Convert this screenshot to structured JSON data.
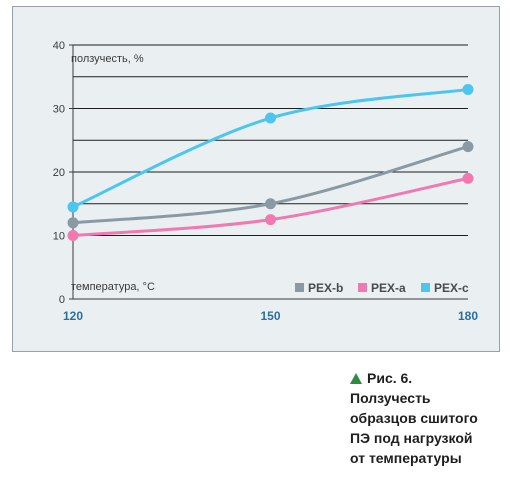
{
  "chart_data": {
    "type": "line",
    "ylabel": "ползучесть, %",
    "xlabel": "температура, °С",
    "x": [
      120,
      150,
      180
    ],
    "xlim": [
      120,
      180
    ],
    "ylim": [
      0,
      40
    ],
    "y_ticks": [
      "0",
      "10",
      "20",
      "30",
      "40"
    ],
    "x_ticks": [
      "120",
      "150",
      "180"
    ],
    "grid": true,
    "legend_position": "bottom-right",
    "series": [
      {
        "name": "PEX-b",
        "color": "#8a9aa5",
        "values": [
          12,
          15,
          24
        ]
      },
      {
        "name": "PEX-a",
        "color": "#f07ab0",
        "values": [
          10,
          12.5,
          19
        ]
      },
      {
        "name": "PEX-c",
        "color": "#4cc6ee",
        "values": [
          14.5,
          28.5,
          33
        ]
      }
    ]
  },
  "caption": {
    "figure_label": "Рис. 6.",
    "text": "Ползучесть\nобразцов сшитого\nПЭ под нагрузкой\nот температуры"
  },
  "colors": {
    "background": "#eaf0f2",
    "gridline": "#1e1e1e",
    "axis_text": "#3a3a3a",
    "x_tick_text": "#2a6fa0",
    "triangle": "#2e8b3f"
  }
}
